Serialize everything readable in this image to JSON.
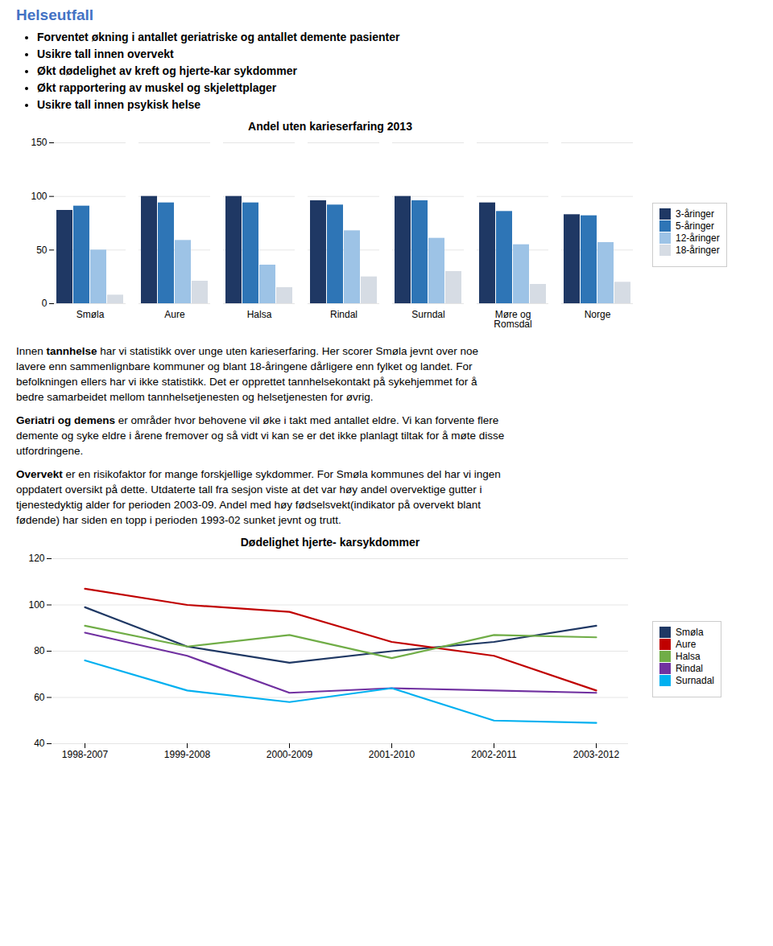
{
  "header": {
    "title": "Helseutfall",
    "color": "#4472C4",
    "bullets": [
      "Forventet økning i antallet geriatriske og antallet demente pasienter",
      "Usikre tall innen overvekt",
      "Økt dødelighet av kreft og hjerte-kar sykdommer",
      "Økt rapportering av muskel og skjelettplager",
      "Usikre tall innen psykisk helse"
    ]
  },
  "chart_data": [
    {
      "type": "bar",
      "title": "Andel uten karieserfaring 2013",
      "categories": [
        "Smøla",
        "Aure",
        "Halsa",
        "Rindal",
        "Surndal",
        "Møre og\nRomsdal",
        "Norge"
      ],
      "series": [
        {
          "name": "3-åringer",
          "color": "#1F3864",
          "values": [
            87,
            100,
            100,
            96,
            100,
            94,
            83
          ]
        },
        {
          "name": "5-åringer",
          "color": "#2E75B6",
          "values": [
            91,
            94,
            94,
            92,
            96,
            86,
            82
          ]
        },
        {
          "name": "12-åringer",
          "color": "#9DC3E6",
          "values": [
            50,
            59,
            36,
            68,
            61,
            55,
            57
          ]
        },
        {
          "name": "18-åringer",
          "color": "#D6DCE4",
          "values": [
            8,
            21,
            15,
            25,
            30,
            18,
            20
          ]
        }
      ],
      "ylim": [
        0,
        150
      ],
      "yticks": [
        0,
        50,
        100,
        150
      ],
      "grid": true,
      "legend": "right"
    },
    {
      "type": "line",
      "title": "Dødelighet hjerte- karsykdommer",
      "x": [
        "1998-2007",
        "1999-2008",
        "2000-2009",
        "2001-2010",
        "2002-2011",
        "2003-2012"
      ],
      "series": [
        {
          "name": "Smøla",
          "color": "#1F3864",
          "values": [
            99,
            82,
            75,
            80,
            84,
            91
          ]
        },
        {
          "name": "Aure",
          "color": "#C00000",
          "values": [
            107,
            100,
            97,
            84,
            78,
            63
          ]
        },
        {
          "name": "Halsa",
          "color": "#70AD47",
          "values": [
            91,
            82,
            87,
            77,
            87,
            86
          ]
        },
        {
          "name": "Rindal",
          "color": "#7030A0",
          "values": [
            88,
            78,
            62,
            64,
            63,
            62
          ]
        },
        {
          "name": "Surnadal",
          "color": "#00B0F0",
          "values": [
            76,
            63,
            58,
            64,
            50,
            49
          ]
        }
      ],
      "ylim": [
        40,
        120
      ],
      "yticks": [
        40,
        60,
        80,
        100,
        120
      ],
      "grid": true,
      "legend": "right"
    }
  ],
  "paragraphs": [
    [
      [
        {
          "text": "Innen "
        },
        {
          "text": "tannhelse",
          "bold": true
        },
        {
          "text": " har vi statistikk over unge uten karieserfaring. Her scorer Smøla jevnt over noe"
        }
      ],
      "lavere enn sammenlignbare kommuner og blant 18-åringene dårligere enn fylket og landet. For",
      "befolkningen ellers har vi ikke statistikk. Det er opprettet tannhelsekontakt på sykehjemmet for å",
      "bedre samarbeidet mellom tannhelsetjenesten og helsetjenesten for øvrig."
    ],
    [
      [
        {
          "text": "Geriatri og demens",
          "bold": true
        },
        {
          "text": " er områder hvor behovene vil øke i takt med antallet eldre. Vi kan forvente flere"
        }
      ],
      "demente og syke eldre i årene fremover og så vidt vi kan se er det ikke planlagt tiltak for å møte disse",
      "utfordringene."
    ],
    [
      [
        {
          "text": "Overvekt",
          "bold": true
        },
        {
          "text": " er en risikofaktor for mange forskjellige sykdommer. For Smøla kommunes del har vi ingen"
        }
      ],
      "oppdatert oversikt på dette. Utdaterte tall fra sesjon viste at det var høy andel overvektige gutter i",
      "tjenestedyktig alder for perioden 2003-09. Andel med høy fødselsvekt(indikator på overvekt blant",
      "fødende) har siden en topp i perioden 1993-02 sunket jevnt og trutt."
    ]
  ]
}
